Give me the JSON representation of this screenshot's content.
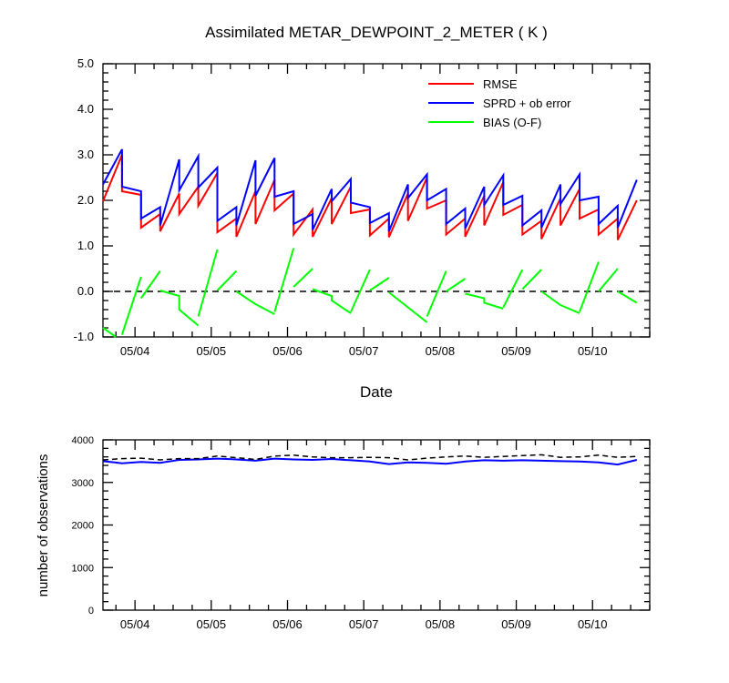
{
  "chart_data": [
    {
      "type": "line",
      "title": "Assimilated METAR_DEWPOINT_2_METER ( K )",
      "xlabel": "Date",
      "ylabel": "",
      "ylim": [
        -1.0,
        5.0
      ],
      "yticks": [
        "-1.0",
        "0.0",
        "1.0",
        "2.0",
        "3.0",
        "4.0",
        "5.0"
      ],
      "xlim": [
        3.58,
        10.75
      ],
      "xticks": [
        {
          "x": 4,
          "label": "05/04"
        },
        {
          "x": 5,
          "label": "05/05"
        },
        {
          "x": 6,
          "label": "05/06"
        },
        {
          "x": 7,
          "label": "05/07"
        },
        {
          "x": 8,
          "label": "05/08"
        },
        {
          "x": 9,
          "label": "05/09"
        },
        {
          "x": 10,
          "label": "05/10"
        }
      ],
      "legend_position": "top-right",
      "grid": false,
      "reference_line": 0.0,
      "series": [
        {
          "name": "RMSE",
          "color": "#ff0000",
          "points": [
            [
              3.58,
              1.98
            ],
            [
              3.83,
              3.0
            ],
            [
              3.83,
              2.2
            ],
            [
              4.08,
              2.12
            ],
            [
              4.08,
              1.4
            ],
            [
              4.33,
              1.7
            ],
            [
              4.33,
              1.32
            ],
            [
              4.58,
              2.15
            ],
            [
              4.58,
              1.7
            ],
            [
              4.83,
              2.3
            ],
            [
              4.83,
              1.88
            ],
            [
              5.08,
              2.6
            ],
            [
              5.08,
              1.3
            ],
            [
              5.33,
              1.6
            ],
            [
              5.33,
              1.2
            ],
            [
              5.58,
              2.2
            ],
            [
              5.58,
              1.48
            ],
            [
              5.83,
              2.45
            ],
            [
              5.83,
              1.78
            ],
            [
              6.08,
              2.15
            ],
            [
              6.08,
              1.25
            ],
            [
              6.33,
              1.8
            ],
            [
              6.33,
              1.2
            ],
            [
              6.58,
              2.05
            ],
            [
              6.58,
              1.48
            ],
            [
              6.83,
              2.3
            ],
            [
              6.83,
              1.72
            ],
            [
              7.08,
              1.8
            ],
            [
              7.08,
              1.23
            ],
            [
              7.33,
              1.6
            ],
            [
              7.33,
              1.19
            ],
            [
              7.58,
              2.15
            ],
            [
              7.58,
              1.55
            ],
            [
              7.83,
              2.5
            ],
            [
              7.83,
              1.82
            ],
            [
              8.08,
              2.0
            ],
            [
              8.08,
              1.25
            ],
            [
              8.33,
              1.6
            ],
            [
              8.33,
              1.2
            ],
            [
              8.58,
              2.1
            ],
            [
              8.58,
              1.45
            ],
            [
              8.83,
              2.4
            ],
            [
              8.83,
              1.68
            ],
            [
              9.08,
              1.9
            ],
            [
              9.08,
              1.25
            ],
            [
              9.33,
              1.55
            ],
            [
              9.33,
              1.15
            ],
            [
              9.58,
              2.05
            ],
            [
              9.58,
              1.45
            ],
            [
              9.83,
              2.25
            ],
            [
              9.83,
              1.6
            ],
            [
              10.08,
              1.8
            ],
            [
              10.08,
              1.25
            ],
            [
              10.33,
              1.6
            ],
            [
              10.33,
              1.13
            ],
            [
              10.58,
              2.0
            ]
          ]
        },
        {
          "name": "SPRD + ob error",
          "color": "#0000ff",
          "points": [
            [
              3.58,
              2.35
            ],
            [
              3.83,
              3.12
            ],
            [
              3.83,
              2.3
            ],
            [
              4.08,
              2.2
            ],
            [
              4.08,
              1.6
            ],
            [
              4.33,
              1.85
            ],
            [
              4.33,
              1.45
            ],
            [
              4.58,
              2.9
            ],
            [
              4.58,
              2.22
            ],
            [
              4.83,
              2.97
            ],
            [
              4.83,
              2.28
            ],
            [
              5.08,
              2.72
            ],
            [
              5.08,
              1.55
            ],
            [
              5.33,
              1.85
            ],
            [
              5.33,
              1.45
            ],
            [
              5.58,
              2.88
            ],
            [
              5.58,
              2.1
            ],
            [
              5.83,
              2.93
            ],
            [
              5.83,
              2.08
            ],
            [
              6.08,
              2.2
            ],
            [
              6.08,
              1.48
            ],
            [
              6.33,
              1.7
            ],
            [
              6.33,
              1.35
            ],
            [
              6.58,
              2.25
            ],
            [
              6.58,
              1.98
            ],
            [
              6.83,
              2.47
            ],
            [
              6.83,
              1.95
            ],
            [
              7.08,
              1.85
            ],
            [
              7.08,
              1.5
            ],
            [
              7.33,
              1.72
            ],
            [
              7.33,
              1.32
            ],
            [
              7.58,
              2.35
            ],
            [
              7.58,
              2.05
            ],
            [
              7.83,
              2.57
            ],
            [
              7.83,
              2.0
            ],
            [
              8.08,
              2.25
            ],
            [
              8.08,
              1.48
            ],
            [
              8.33,
              1.82
            ],
            [
              8.33,
              1.38
            ],
            [
              8.58,
              2.3
            ],
            [
              8.58,
              1.9
            ],
            [
              8.83,
              2.55
            ],
            [
              8.83,
              1.9
            ],
            [
              9.08,
              2.1
            ],
            [
              9.08,
              1.45
            ],
            [
              9.33,
              1.78
            ],
            [
              9.33,
              1.4
            ],
            [
              9.58,
              2.35
            ],
            [
              9.58,
              1.92
            ],
            [
              9.83,
              2.57
            ],
            [
              9.83,
              2.0
            ],
            [
              10.08,
              2.08
            ],
            [
              10.08,
              1.48
            ],
            [
              10.33,
              1.88
            ],
            [
              10.33,
              1.4
            ],
            [
              10.58,
              2.45
            ]
          ]
        },
        {
          "name": "BIAS (O-F)",
          "color": "#00ff00",
          "points": [
            [
              3.58,
              -0.8
            ],
            [
              3.75,
              -1.0
            ]
          ],
          "segments": [
            [
              [
                3.83,
                -0.95
              ],
              [
                4.08,
                0.32
              ]
            ],
            [
              [
                4.08,
                -0.15
              ],
              [
                4.33,
                0.45
              ]
            ],
            [
              [
                4.33,
                0.02
              ],
              [
                4.58,
                -0.1
              ],
              [
                4.58,
                -0.4
              ],
              [
                4.83,
                -0.75
              ]
            ],
            [
              [
                4.83,
                -0.55
              ],
              [
                5.08,
                0.92
              ]
            ],
            [
              [
                5.08,
                0.02
              ],
              [
                5.33,
                0.45
              ]
            ],
            [
              [
                5.33,
                0.0
              ],
              [
                5.58,
                -0.28
              ],
              [
                5.83,
                -0.5
              ]
            ],
            [
              [
                5.83,
                -0.45
              ],
              [
                6.08,
                0.95
              ]
            ],
            [
              [
                6.08,
                0.1
              ],
              [
                6.33,
                0.5
              ]
            ],
            [
              [
                6.33,
                0.05
              ],
              [
                6.58,
                -0.1
              ],
              [
                6.58,
                -0.2
              ],
              [
                6.83,
                -0.48
              ]
            ],
            [
              [
                6.83,
                -0.45
              ],
              [
                7.08,
                0.48
              ]
            ],
            [
              [
                7.08,
                0.02
              ],
              [
                7.33,
                0.3
              ]
            ],
            [
              [
                7.33,
                -0.02
              ],
              [
                7.58,
                -0.35
              ],
              [
                7.83,
                -0.68
              ]
            ],
            [
              [
                7.83,
                -0.55
              ],
              [
                8.08,
                0.45
              ]
            ],
            [
              [
                8.08,
                0.0
              ],
              [
                8.33,
                0.28
              ]
            ],
            [
              [
                8.33,
                -0.05
              ],
              [
                8.58,
                -0.15
              ],
              [
                8.58,
                -0.25
              ],
              [
                8.83,
                -0.38
              ]
            ],
            [
              [
                8.83,
                -0.35
              ],
              [
                9.08,
                0.48
              ]
            ],
            [
              [
                9.08,
                0.05
              ],
              [
                9.33,
                0.48
              ]
            ],
            [
              [
                9.33,
                0.0
              ],
              [
                9.58,
                -0.3
              ],
              [
                9.83,
                -0.48
              ]
            ],
            [
              [
                9.83,
                -0.45
              ],
              [
                10.08,
                0.65
              ]
            ],
            [
              [
                10.08,
                0.0
              ],
              [
                10.33,
                0.5
              ]
            ],
            [
              [
                10.33,
                0.0
              ],
              [
                10.58,
                -0.25
              ]
            ]
          ]
        }
      ]
    },
    {
      "type": "line",
      "title": "",
      "xlabel": "",
      "ylabel": "number of observations",
      "ylim": [
        0,
        4000
      ],
      "yticks": [
        "0",
        "1000",
        "2000",
        "3000",
        "4000"
      ],
      "xlim": [
        3.58,
        10.75
      ],
      "xticks": [
        {
          "x": 4,
          "label": "05/04"
        },
        {
          "x": 5,
          "label": "05/05"
        },
        {
          "x": 6,
          "label": "05/06"
        },
        {
          "x": 7,
          "label": "05/07"
        },
        {
          "x": 8,
          "label": "05/08"
        },
        {
          "x": 9,
          "label": "05/09"
        },
        {
          "x": 10,
          "label": "05/10"
        }
      ],
      "grid": false,
      "series": [
        {
          "color": "#0000ff",
          "style": "solid",
          "points": [
            [
              3.58,
              3500
            ],
            [
              3.83,
              3450
            ],
            [
              4.08,
              3480
            ],
            [
              4.33,
              3460
            ],
            [
              4.58,
              3530
            ],
            [
              4.83,
              3540
            ],
            [
              5.08,
              3560
            ],
            [
              5.33,
              3540
            ],
            [
              5.58,
              3510
            ],
            [
              5.83,
              3560
            ],
            [
              6.08,
              3540
            ],
            [
              6.33,
              3530
            ],
            [
              6.58,
              3550
            ],
            [
              6.83,
              3520
            ],
            [
              7.08,
              3490
            ],
            [
              7.33,
              3430
            ],
            [
              7.58,
              3470
            ],
            [
              7.83,
              3460
            ],
            [
              8.08,
              3440
            ],
            [
              8.33,
              3490
            ],
            [
              8.58,
              3520
            ],
            [
              8.83,
              3510
            ],
            [
              9.08,
              3520
            ],
            [
              9.33,
              3510
            ],
            [
              9.58,
              3500
            ],
            [
              9.83,
              3490
            ],
            [
              10.08,
              3470
            ],
            [
              10.33,
              3420
            ],
            [
              10.58,
              3530
            ]
          ]
        },
        {
          "color": "#000000",
          "style": "dashed",
          "points": [
            [
              3.58,
              3530
            ],
            [
              3.83,
              3560
            ],
            [
              4.08,
              3570
            ],
            [
              4.33,
              3530
            ],
            [
              4.58,
              3560
            ],
            [
              4.83,
              3560
            ],
            [
              5.08,
              3620
            ],
            [
              5.33,
              3580
            ],
            [
              5.58,
              3540
            ],
            [
              5.83,
              3620
            ],
            [
              6.08,
              3640
            ],
            [
              6.33,
              3600
            ],
            [
              6.58,
              3580
            ],
            [
              6.83,
              3580
            ],
            [
              7.08,
              3590
            ],
            [
              7.33,
              3580
            ],
            [
              7.58,
              3530
            ],
            [
              7.83,
              3570
            ],
            [
              8.08,
              3600
            ],
            [
              8.33,
              3620
            ],
            [
              8.58,
              3590
            ],
            [
              8.83,
              3610
            ],
            [
              9.08,
              3630
            ],
            [
              9.33,
              3650
            ],
            [
              9.58,
              3590
            ],
            [
              9.83,
              3600
            ],
            [
              10.08,
              3640
            ],
            [
              10.33,
              3590
            ],
            [
              10.58,
              3610
            ]
          ]
        }
      ]
    }
  ]
}
